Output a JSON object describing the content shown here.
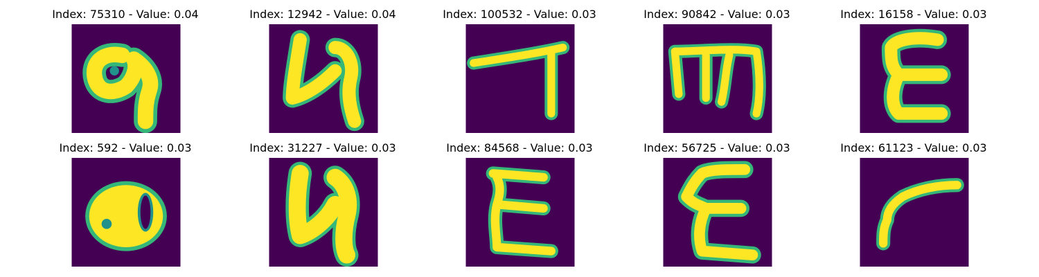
{
  "colors": {
    "background": "#440154",
    "stroke_core": "#fde725",
    "stroke_edge": "#35b779",
    "stroke_mid": "#21918c"
  },
  "panels": [
    {
      "title": "Index: 75310 - Value: 0.04",
      "glyph": "9"
    },
    {
      "title": "Index: 12942 - Value: 0.04",
      "glyph": "4"
    },
    {
      "title": "Index: 100532 - Value: 0.03",
      "glyph": "7"
    },
    {
      "title": "Index: 90842 - Value: 0.03",
      "glyph": "m"
    },
    {
      "title": "Index: 16158 - Value: 0.03",
      "glyph": "E"
    },
    {
      "title": "Index: 592 - Value: 0.03",
      "glyph": "8"
    },
    {
      "title": "Index: 31227 - Value: 0.03",
      "glyph": "4"
    },
    {
      "title": "Index: 84568 - Value: 0.03",
      "glyph": "E"
    },
    {
      "title": "Index: 56725 - Value: 0.03",
      "glyph": "E"
    },
    {
      "title": "Index: 61123 - Value: 0.03",
      "glyph": "r"
    }
  ]
}
